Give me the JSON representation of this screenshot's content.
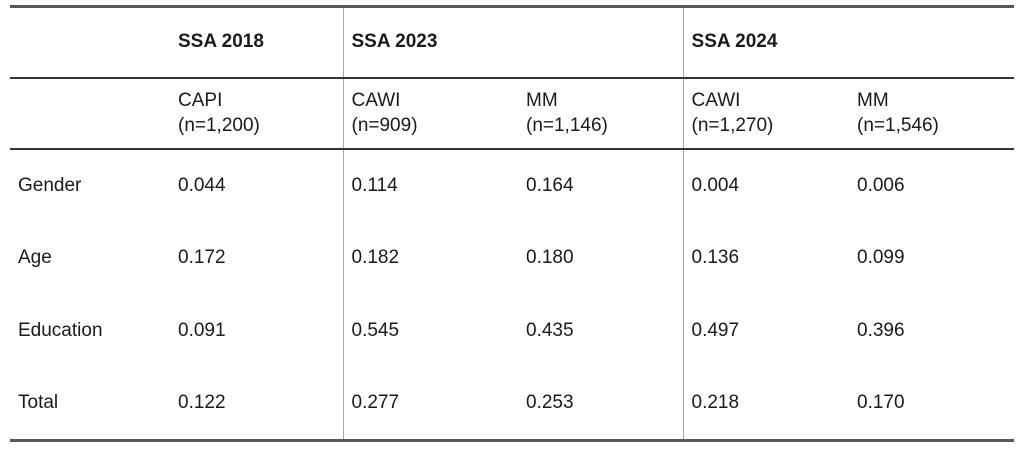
{
  "table": {
    "group_headers": [
      {
        "label": "SSA 2018"
      },
      {
        "label": "SSA 2023"
      },
      {
        "label": "SSA 2024"
      }
    ],
    "column_headers": [
      {
        "mode": "CAPI",
        "n": "(n=1,200)"
      },
      {
        "mode": "CAWI",
        "n": "(n=909)"
      },
      {
        "mode": "MM",
        "n": "(n=1,146)"
      },
      {
        "mode": "CAWI",
        "n": "(n=1,270)"
      },
      {
        "mode": "MM",
        "n": "(n=1,546)"
      }
    ],
    "rows": [
      {
        "label": "Gender",
        "values": [
          "0.044",
          "0.114",
          "0.164",
          "0.004",
          "0.006"
        ]
      },
      {
        "label": "Age",
        "values": [
          "0.172",
          "0.182",
          "0.180",
          "0.136",
          "0.099"
        ]
      },
      {
        "label": "Education",
        "values": [
          "0.091",
          "0.545",
          "0.435",
          "0.497",
          "0.396"
        ]
      },
      {
        "label": "Total",
        "values": [
          "0.122",
          "0.277",
          "0.253",
          "0.218",
          "0.170"
        ]
      }
    ]
  },
  "chart_data": {
    "type": "table",
    "column_groups": [
      "SSA 2018",
      "SSA 2023",
      "SSA 2023",
      "SSA 2024",
      "SSA 2024"
    ],
    "columns": [
      "CAPI (n=1,200)",
      "CAWI (n=909)",
      "MM (n=1,146)",
      "CAWI (n=1,270)",
      "MM (n=1,546)"
    ],
    "row_labels": [
      "Gender",
      "Age",
      "Education",
      "Total"
    ],
    "values": [
      [
        0.044,
        0.114,
        0.164,
        0.004,
        0.006
      ],
      [
        0.172,
        0.182,
        0.18,
        0.136,
        0.099
      ],
      [
        0.091,
        0.545,
        0.435,
        0.497,
        0.396
      ],
      [
        0.122,
        0.277,
        0.253,
        0.218,
        0.17
      ]
    ]
  },
  "colors": {
    "outer_rule": "#595959",
    "inner_rule": "#333333",
    "group_divider": "#a6a6a6",
    "text": "#1a1a1a",
    "background": "#ffffff"
  }
}
